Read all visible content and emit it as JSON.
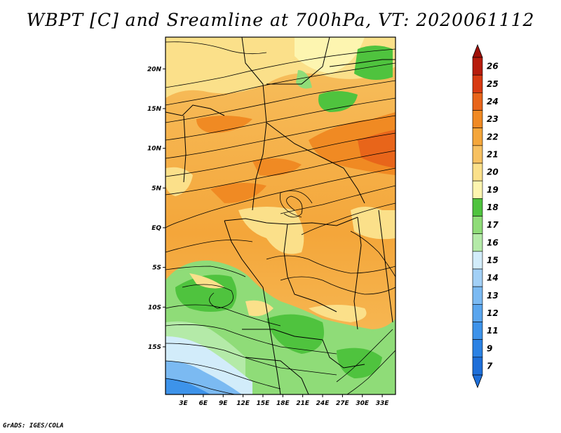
{
  "title": "WBPT [C] and Sreamline at 700hPa, VT: 2020061112",
  "credit": "GrADS: IGES/COLA",
  "map": {
    "lat_range": [
      -21,
      24
    ],
    "lon_range": [
      0.3,
      35
    ],
    "lat_ticks": [
      {
        "value": 20,
        "label": "20N"
      },
      {
        "value": 15,
        "label": "15N"
      },
      {
        "value": 10,
        "label": "10N"
      },
      {
        "value": 5,
        "label": "5N"
      },
      {
        "value": 0,
        "label": "EQ"
      },
      {
        "value": -5,
        "label": "5S"
      },
      {
        "value": -10,
        "label": "10S"
      },
      {
        "value": -15,
        "label": "15S"
      }
    ],
    "lon_ticks": [
      {
        "value": 3,
        "label": "3E"
      },
      {
        "value": 6,
        "label": "6E"
      },
      {
        "value": 9,
        "label": "9E"
      },
      {
        "value": 12,
        "label": "12E"
      },
      {
        "value": 15,
        "label": "15E"
      },
      {
        "value": 18,
        "label": "18E"
      },
      {
        "value": 21,
        "label": "21E"
      },
      {
        "value": 24,
        "label": "24E"
      },
      {
        "value": 27,
        "label": "27E"
      },
      {
        "value": 30,
        "label": "30E"
      },
      {
        "value": 33,
        "label": "33E"
      }
    ]
  },
  "colorbar": {
    "levels": [
      {
        "label": "7",
        "color": "#1e6fd9"
      },
      {
        "label": "9",
        "color": "#2b82e4"
      },
      {
        "label": "11",
        "color": "#3d93ea"
      },
      {
        "label": "12",
        "color": "#5aa6ee"
      },
      {
        "label": "13",
        "color": "#7bbaf2"
      },
      {
        "label": "14",
        "color": "#a2d0f6"
      },
      {
        "label": "15",
        "color": "#d2ecfa"
      },
      {
        "label": "16",
        "color": "#b4eaa8"
      },
      {
        "label": "17",
        "color": "#8fdc78"
      },
      {
        "label": "18",
        "color": "#4fc33e"
      },
      {
        "label": "19",
        "color": "#fdf5b0"
      },
      {
        "label": "20",
        "color": "#fbe08a"
      },
      {
        "label": "21",
        "color": "#f7c161"
      },
      {
        "label": "22",
        "color": "#f4a63a"
      },
      {
        "label": "23",
        "color": "#f08a23"
      },
      {
        "label": "24",
        "color": "#e8651a"
      },
      {
        "label": "25",
        "color": "#d83a12"
      },
      {
        "label": "26",
        "color": "#b71c0c"
      }
    ],
    "under_color": "#1e6fd9",
    "over_color": "#a01008"
  }
}
